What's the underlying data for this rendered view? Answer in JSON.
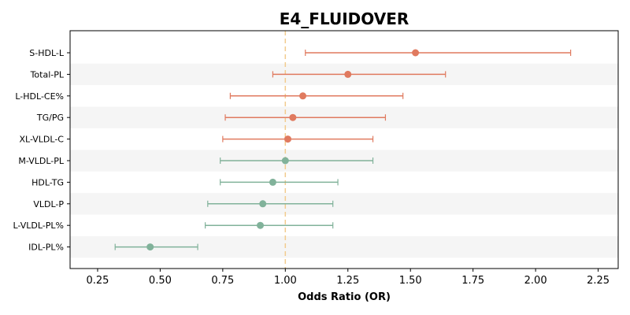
{
  "chart_data": {
    "type": "forest",
    "title": "E4_FLUIDOVER",
    "xlabel": "Odds Ratio (OR)",
    "xlim": [
      0.14,
      2.33
    ],
    "xticks": [
      0.25,
      0.5,
      0.75,
      1.0,
      1.25,
      1.5,
      1.75,
      2.0,
      2.25
    ],
    "xtick_labels": [
      "0.25",
      "0.50",
      "0.75",
      "1.00",
      "1.25",
      "1.50",
      "1.75",
      "2.00",
      "2.25"
    ],
    "reference_line": 1.0,
    "grid": false,
    "colors": {
      "increased": "#e07a5f",
      "decreased": "#81b29a",
      "reference": "#f2cc8f",
      "band": "#f5f5f5"
    },
    "rows": [
      {
        "label": "S-HDL-L",
        "or": 1.52,
        "lower": 1.08,
        "upper": 2.14,
        "group": "increased"
      },
      {
        "label": "Total-PL",
        "or": 1.25,
        "lower": 0.95,
        "upper": 1.64,
        "group": "increased"
      },
      {
        "label": "L-HDL-CE%",
        "or": 1.07,
        "lower": 0.78,
        "upper": 1.47,
        "group": "increased"
      },
      {
        "label": "TG/PG",
        "or": 1.03,
        "lower": 0.76,
        "upper": 1.4,
        "group": "increased"
      },
      {
        "label": "XL-VLDL-C",
        "or": 1.01,
        "lower": 0.75,
        "upper": 1.35,
        "group": "increased"
      },
      {
        "label": "M-VLDL-PL",
        "or": 1.0,
        "lower": 0.74,
        "upper": 1.35,
        "group": "decreased"
      },
      {
        "label": "HDL-TG",
        "or": 0.95,
        "lower": 0.74,
        "upper": 1.21,
        "group": "decreased"
      },
      {
        "label": "VLDL-P",
        "or": 0.91,
        "lower": 0.69,
        "upper": 1.19,
        "group": "decreased"
      },
      {
        "label": "L-VLDL-PL%",
        "or": 0.9,
        "lower": 0.68,
        "upper": 1.19,
        "group": "decreased"
      },
      {
        "label": "IDL-PL%",
        "or": 0.46,
        "lower": 0.32,
        "upper": 0.65,
        "group": "decreased"
      }
    ]
  }
}
